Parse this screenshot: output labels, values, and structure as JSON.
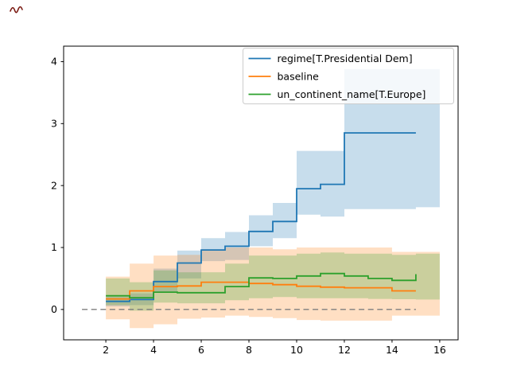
{
  "figure": {
    "background": "#ffffff",
    "artifact_mark_color": "#7a1a12"
  },
  "chart_data": {
    "type": "line",
    "subtype": "step-post lines with step confidence bands",
    "title": "",
    "xlabel": "",
    "ylabel": "",
    "x": [
      2,
      3,
      4,
      5,
      6,
      7,
      8,
      9,
      10,
      11,
      12,
      13,
      14,
      15
    ],
    "band_extends_to_x": 16,
    "series": [
      {
        "name": "regime[T.Presidential Dem]",
        "color": "#1f77b4",
        "values": [
          0.13,
          0.16,
          0.45,
          0.75,
          0.96,
          1.02,
          1.26,
          1.42,
          1.95,
          2.02,
          2.85,
          2.85,
          2.85,
          2.85
        ],
        "band_lower": [
          0.05,
          0.07,
          0.28,
          0.5,
          0.78,
          0.8,
          1.02,
          1.15,
          1.53,
          1.5,
          1.62,
          1.62,
          1.62,
          1.65
        ],
        "band_upper": [
          0.2,
          0.26,
          0.66,
          0.95,
          1.15,
          1.25,
          1.52,
          1.72,
          2.56,
          2.56,
          3.88,
          3.88,
          3.88,
          3.88
        ]
      },
      {
        "name": "baseline",
        "color": "#ff7f0e",
        "values": [
          0.17,
          0.3,
          0.37,
          0.38,
          0.44,
          0.44,
          0.42,
          0.4,
          0.375,
          0.36,
          0.35,
          0.35,
          0.3,
          0.3
        ],
        "band_lower": [
          -0.16,
          -0.3,
          -0.24,
          -0.15,
          -0.13,
          -0.1,
          -0.12,
          -0.14,
          -0.17,
          -0.18,
          -0.18,
          -0.18,
          -0.1,
          -0.1
        ],
        "band_upper": [
          0.53,
          0.74,
          0.87,
          0.88,
          0.97,
          1.0,
          1.0,
          0.97,
          1.0,
          1.0,
          1.0,
          1.0,
          0.93,
          0.93
        ]
      },
      {
        "name": "un_continent_name[T.Europe]",
        "color": "#2ca02c",
        "values": [
          0.22,
          0.19,
          0.28,
          0.27,
          0.27,
          0.37,
          0.51,
          0.5,
          0.54,
          0.58,
          0.54,
          0.5,
          0.47,
          0.57
        ],
        "band_lower": [
          0.07,
          -0.02,
          0.11,
          0.1,
          0.1,
          0.15,
          0.18,
          0.2,
          0.18,
          0.18,
          0.18,
          0.17,
          0.165,
          0.16
        ],
        "band_upper": [
          0.5,
          0.44,
          0.63,
          0.6,
          0.6,
          0.74,
          0.87,
          0.87,
          0.9,
          0.92,
          0.9,
          0.9,
          0.88,
          0.9
        ]
      }
    ],
    "band_alpha": 0.25,
    "zero_line": {
      "y": 0,
      "x_start": 1,
      "x_end": 15,
      "style": "dashed",
      "color": "#7f7f7f"
    },
    "xticks": [
      "2",
      "4",
      "6",
      "8",
      "10",
      "12",
      "14",
      "16"
    ],
    "xtick_values": [
      2,
      4,
      6,
      8,
      10,
      12,
      14,
      16
    ],
    "yticks": [
      "0",
      "1",
      "2",
      "3",
      "4"
    ],
    "ytick_values": [
      0,
      1,
      2,
      3,
      4
    ],
    "xlim": [
      0.23,
      16.77
    ],
    "ylim": [
      -0.49,
      4.25
    ],
    "grid": false,
    "legend": {
      "position": "upper right",
      "entries": [
        "regime[T.Presidential Dem]",
        "baseline",
        "un_continent_name[T.Europe]"
      ],
      "edge_color": "#cccccc",
      "face_color": "#ffffff",
      "face_opacity": 0.8
    }
  }
}
